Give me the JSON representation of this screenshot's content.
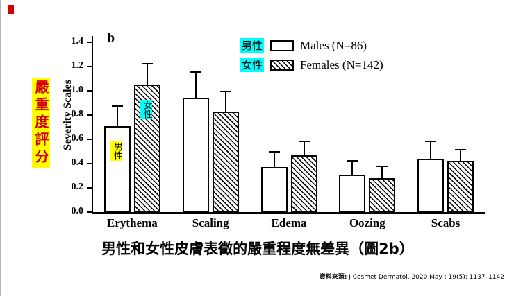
{
  "slide": {
    "left_vertical_label": "嚴重度評分",
    "caption": "男性和女性皮膚表徵的嚴重程度無差異（圖2b）",
    "source_label": "資料來源:",
    "source_text": " J Cosmet Dermatol. 2020 May ; 19(5): 1137–1142"
  },
  "colors": {
    "highlight_yellow": "#ffff00",
    "highlight_cyan": "#00ffff",
    "accent_red": "#d40000",
    "bar_outline": "#000000"
  },
  "chart_data": {
    "type": "bar",
    "panel_label": "b",
    "title": "",
    "ylabel": "Severity Scales",
    "xlabel": "",
    "categories": [
      "Erythema",
      "Scaling",
      "Edema",
      "Oozing",
      "Scabs"
    ],
    "series": [
      {
        "key": "males",
        "name": "Males (N=86)",
        "style": "plain",
        "values": [
          0.71,
          0.94,
          0.37,
          0.31,
          0.44
        ],
        "errors": [
          0.17,
          0.22,
          0.13,
          0.12,
          0.15
        ]
      },
      {
        "key": "females",
        "name": "Females (N=142)",
        "style": "hatched",
        "values": [
          1.05,
          0.83,
          0.47,
          0.28,
          0.42
        ],
        "errors": [
          0.18,
          0.17,
          0.12,
          0.1,
          0.1
        ]
      }
    ],
    "ylim": [
      0,
      1.45
    ],
    "yticks": [
      0,
      0.2,
      0.4,
      0.6,
      0.8,
      1.0,
      1.2,
      1.4
    ],
    "grid": false,
    "legend_position": "top-right",
    "legend": [
      {
        "tag": "男性",
        "label": "Males (N=86)",
        "style": "plain"
      },
      {
        "tag": "女性",
        "label": "Females (N=142)",
        "style": "hatched"
      }
    ],
    "bar_annotations": [
      {
        "text": "男性",
        "series": 0,
        "category": 0,
        "highlight": "#ffff00"
      },
      {
        "text": "女性",
        "series": 1,
        "category": 0,
        "highlight": "#00ffff"
      }
    ]
  }
}
